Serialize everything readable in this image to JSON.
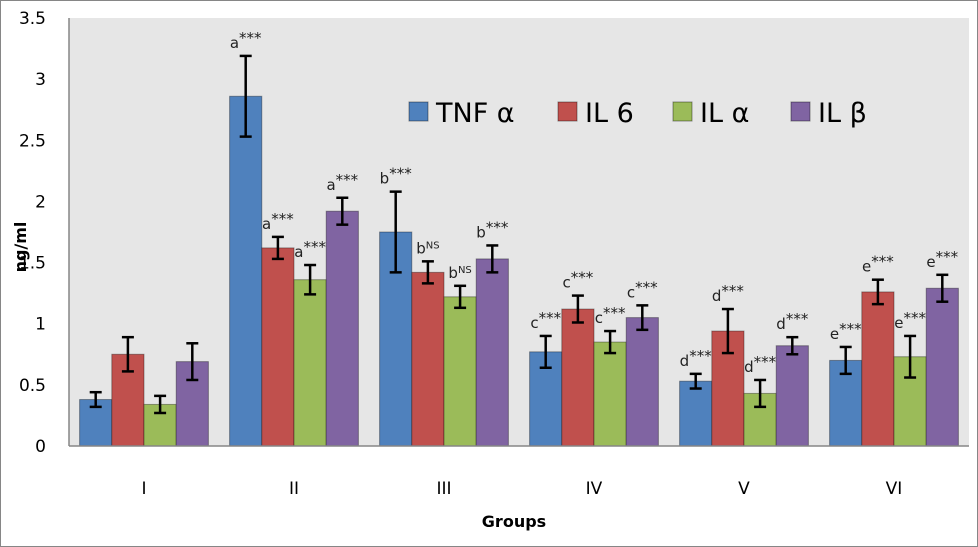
{
  "chart_data": {
    "type": "bar",
    "title": "",
    "xlabel": "Groups",
    "ylabel": "ng/ml",
    "ylim": [
      0,
      3.5
    ],
    "yticks": [
      0,
      0.5,
      1,
      1.5,
      2,
      2.5,
      3,
      3.5
    ],
    "ytick_labels": [
      "0",
      "0.5",
      "1",
      "1.5",
      "2",
      "2.5",
      "3",
      "3.5"
    ],
    "grid": false,
    "legend_position": "top-right",
    "categories": [
      "I",
      "II",
      "III",
      "IV",
      "V",
      "VI"
    ],
    "series": [
      {
        "name": "TNF α",
        "color": "#4f81bd",
        "values": [
          0.38,
          2.86,
          1.75,
          0.77,
          0.53,
          0.7
        ],
        "errors": [
          0.06,
          0.33,
          0.33,
          0.13,
          0.06,
          0.11
        ],
        "annotations": [
          {
            "base": "",
            "sup": ""
          },
          {
            "base": "a",
            "sup": "***"
          },
          {
            "base": "b",
            "sup": "***"
          },
          {
            "base": "c",
            "sup": "***"
          },
          {
            "base": "d",
            "sup": "***"
          },
          {
            "base": "e",
            "sup": "***"
          }
        ]
      },
      {
        "name": "IL 6",
        "color": "#c0504d",
        "values": [
          0.75,
          1.62,
          1.42,
          1.12,
          0.94,
          1.26
        ],
        "errors": [
          0.14,
          0.09,
          0.09,
          0.11,
          0.18,
          0.1
        ],
        "annotations": [
          {
            "base": "",
            "sup": ""
          },
          {
            "base": "a",
            "sup": "***"
          },
          {
            "base": "b",
            "sup": "NS"
          },
          {
            "base": "c",
            "sup": "***"
          },
          {
            "base": "d",
            "sup": "***"
          },
          {
            "base": "e",
            "sup": "***"
          }
        ]
      },
      {
        "name": "IL α",
        "color": "#9bbb59",
        "values": [
          0.34,
          1.36,
          1.22,
          0.85,
          0.43,
          0.73
        ],
        "errors": [
          0.07,
          0.12,
          0.09,
          0.09,
          0.11,
          0.17
        ],
        "annotations": [
          {
            "base": "",
            "sup": ""
          },
          {
            "base": "a",
            "sup": "***"
          },
          {
            "base": "b",
            "sup": "NS"
          },
          {
            "base": "c",
            "sup": "***"
          },
          {
            "base": "d",
            "sup": "***"
          },
          {
            "base": "e",
            "sup": "***"
          }
        ]
      },
      {
        "name": "IL β",
        "color": "#8064a2",
        "values": [
          0.69,
          1.92,
          1.53,
          1.05,
          0.82,
          1.29
        ],
        "errors": [
          0.15,
          0.11,
          0.11,
          0.1,
          0.07,
          0.11
        ],
        "annotations": [
          {
            "base": "",
            "sup": ""
          },
          {
            "base": "a",
            "sup": "***"
          },
          {
            "base": "b",
            "sup": "***"
          },
          {
            "base": "c",
            "sup": "***"
          },
          {
            "base": "d",
            "sup": "***"
          },
          {
            "base": "e",
            "sup": "***"
          }
        ]
      }
    ]
  },
  "style": {
    "plot_background": "#e6e6e6",
    "axis_color": "#868686",
    "errorbar_color": "#000000"
  }
}
